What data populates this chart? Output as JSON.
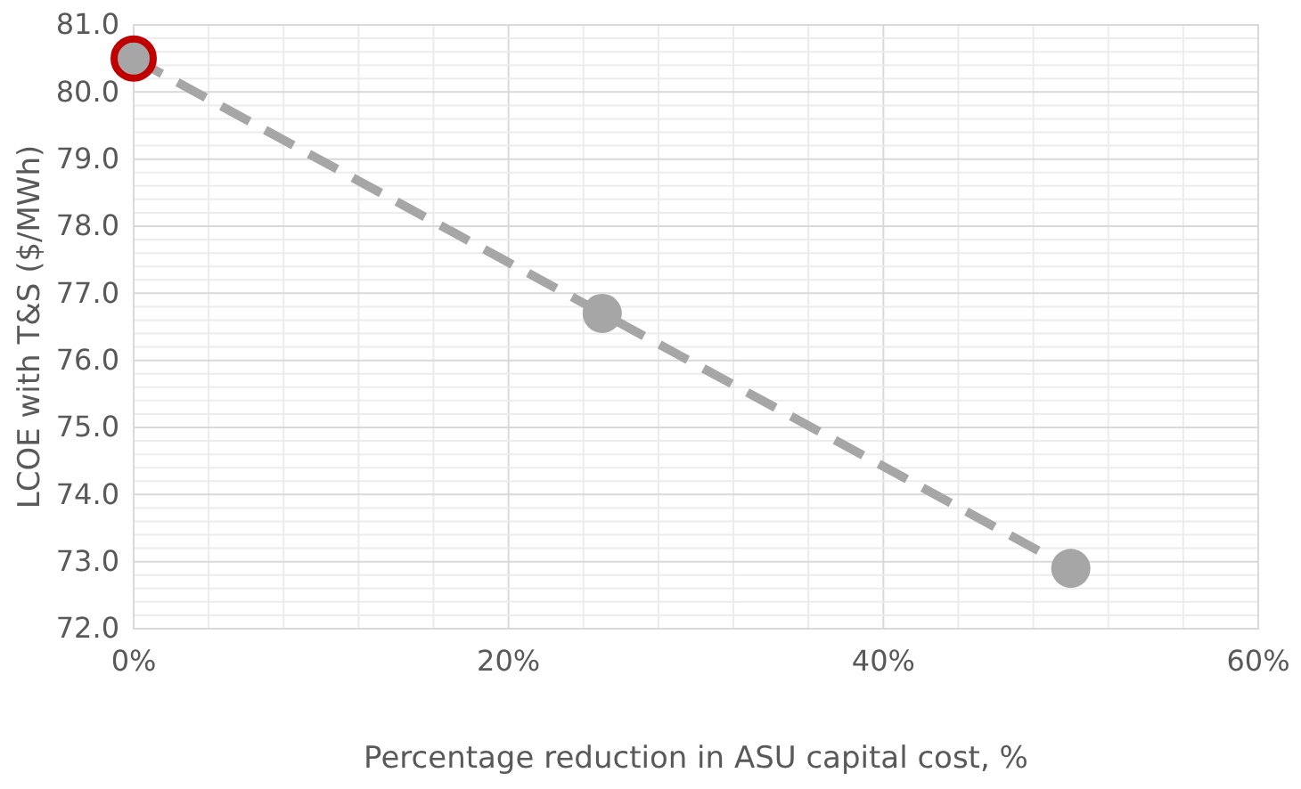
{
  "chart_data": {
    "type": "line",
    "xlabel": "Percentage reduction in ASU capital cost, %",
    "ylabel": "LCOE with T&S ($/MWh)",
    "xlim": [
      0,
      60
    ],
    "ylim": [
      72,
      81
    ],
    "xticks": [
      {
        "value": 0,
        "label": "0%"
      },
      {
        "value": 4,
        "label": null
      },
      {
        "value": 8,
        "label": null
      },
      {
        "value": 12,
        "label": null
      },
      {
        "value": 16,
        "label": null
      },
      {
        "value": 20,
        "label": "20%"
      },
      {
        "value": 24,
        "label": null
      },
      {
        "value": 28,
        "label": null
      },
      {
        "value": 32,
        "label": null
      },
      {
        "value": 36,
        "label": null
      },
      {
        "value": 40,
        "label": "40%"
      },
      {
        "value": 44,
        "label": null
      },
      {
        "value": 48,
        "label": null
      },
      {
        "value": 52,
        "label": null
      },
      {
        "value": 56,
        "label": null
      },
      {
        "value": 60,
        "label": "60%"
      }
    ],
    "yticks": [
      {
        "value": 72,
        "label": "72.0"
      },
      {
        "value": 72.2,
        "label": null
      },
      {
        "value": 72.4,
        "label": null
      },
      {
        "value": 72.6,
        "label": null
      },
      {
        "value": 72.8,
        "label": null
      },
      {
        "value": 73,
        "label": "73.0"
      },
      {
        "value": 73.2,
        "label": null
      },
      {
        "value": 73.4,
        "label": null
      },
      {
        "value": 73.6,
        "label": null
      },
      {
        "value": 73.8,
        "label": null
      },
      {
        "value": 74,
        "label": "74.0"
      },
      {
        "value": 74.2,
        "label": null
      },
      {
        "value": 74.4,
        "label": null
      },
      {
        "value": 74.6,
        "label": null
      },
      {
        "value": 74.8,
        "label": null
      },
      {
        "value": 75,
        "label": "75.0"
      },
      {
        "value": 75.2,
        "label": null
      },
      {
        "value": 75.4,
        "label": null
      },
      {
        "value": 75.6,
        "label": null
      },
      {
        "value": 75.8,
        "label": null
      },
      {
        "value": 76,
        "label": "76.0"
      },
      {
        "value": 76.2,
        "label": null
      },
      {
        "value": 76.4,
        "label": null
      },
      {
        "value": 76.6,
        "label": null
      },
      {
        "value": 76.8,
        "label": null
      },
      {
        "value": 77,
        "label": "77.0"
      },
      {
        "value": 77.2,
        "label": null
      },
      {
        "value": 77.4,
        "label": null
      },
      {
        "value": 77.6,
        "label": null
      },
      {
        "value": 77.8,
        "label": null
      },
      {
        "value": 78,
        "label": "78.0"
      },
      {
        "value": 78.2,
        "label": null
      },
      {
        "value": 78.4,
        "label": null
      },
      {
        "value": 78.6,
        "label": null
      },
      {
        "value": 78.8,
        "label": null
      },
      {
        "value": 79,
        "label": "79.0"
      },
      {
        "value": 79.2,
        "label": null
      },
      {
        "value": 79.4,
        "label": null
      },
      {
        "value": 79.6,
        "label": null
      },
      {
        "value": 79.8,
        "label": null
      },
      {
        "value": 80,
        "label": "80.0"
      },
      {
        "value": 80.2,
        "label": null
      },
      {
        "value": 80.4,
        "label": null
      },
      {
        "value": 80.6,
        "label": null
      },
      {
        "value": 80.8,
        "label": null
      },
      {
        "value": 81,
        "label": "81.0"
      }
    ],
    "grid": true,
    "marker": "circle",
    "line_style": "dashed",
    "series": [
      {
        "color": "#a6a6a6",
        "x": [
          0,
          25,
          50
        ],
        "values": [
          80.5,
          76.7,
          72.9
        ]
      },
      {
        "type": "scatter",
        "color": "#c00000",
        "x": [
          0
        ],
        "values": [
          80.5
        ]
      }
    ]
  }
}
